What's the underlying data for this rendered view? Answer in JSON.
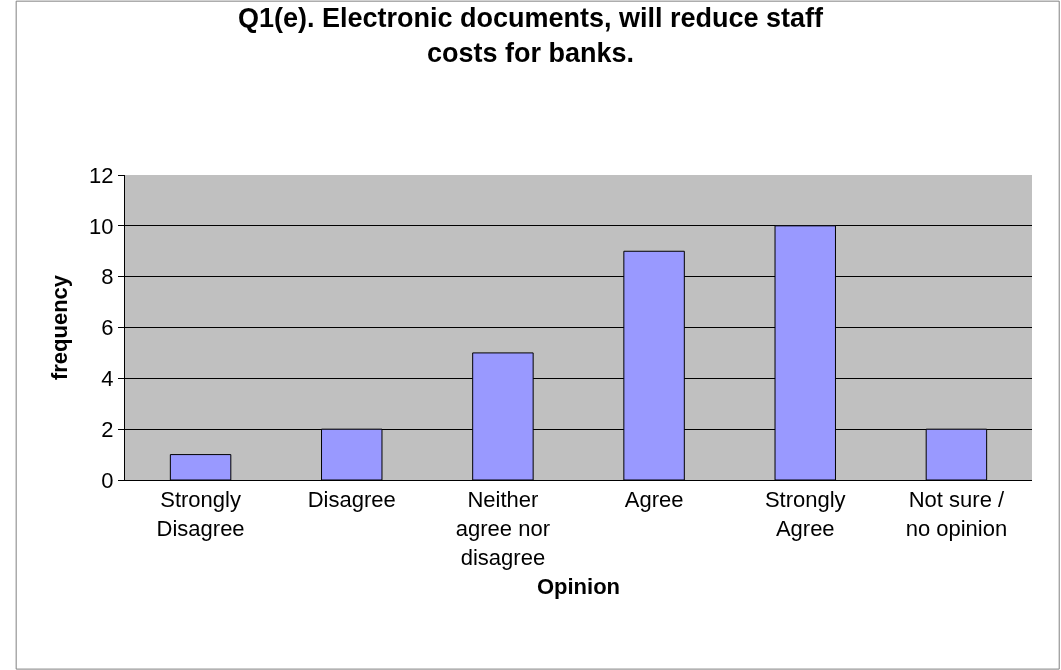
{
  "chart_data": {
    "type": "bar",
    "title": "Q1(e). Electronic documents, will reduce staff\ncosts for banks.",
    "xlabel": "Opinion",
    "ylabel": "frequency",
    "categories": [
      "Strongly\nDisagree",
      "Disagree",
      "Neither\nagree nor\ndisagree",
      "Agree",
      "Strongly\nAgree",
      "Not sure /\nno opinion"
    ],
    "values": [
      1,
      2,
      5,
      9,
      10,
      2
    ],
    "color": "#9999ff",
    "ylim": [
      0,
      12
    ],
    "yticks": [
      0,
      2,
      4,
      6,
      8,
      10,
      12
    ],
    "grid": "y",
    "legend": false
  }
}
